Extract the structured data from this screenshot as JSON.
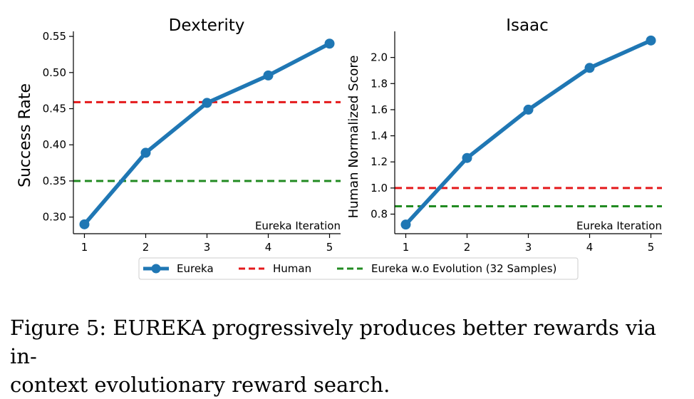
{
  "chart_data": [
    {
      "type": "line",
      "title": "Dexterity",
      "xlabel": "Eureka Iteration",
      "ylabel": "Success Rate",
      "x": [
        1,
        2,
        3,
        4,
        5
      ],
      "xticks": [
        "1",
        "2",
        "3",
        "4",
        "5"
      ],
      "xlim": [
        0.82,
        5.18
      ],
      "ylim": [
        0.277,
        0.557
      ],
      "yticks": [
        "0.30",
        "0.35",
        "0.40",
        "0.45",
        "0.50",
        "0.55"
      ],
      "series": [
        {
          "name": "Eureka",
          "values": [
            0.29,
            0.389,
            0.458,
            0.496,
            0.54
          ],
          "color": "#1f77b4"
        }
      ],
      "hlines": [
        {
          "name": "Human",
          "value": 0.459,
          "color": "#e41a1c"
        },
        {
          "name": "Eureka w.o Evolution (32 Samples)",
          "value": 0.35,
          "color": "#228b22"
        }
      ]
    },
    {
      "type": "line",
      "title": "Isaac",
      "xlabel": "Eureka Iteration",
      "ylabel": "Human Normalized Score",
      "x": [
        1,
        2,
        3,
        4,
        5
      ],
      "xticks": [
        "1",
        "2",
        "3",
        "4",
        "5"
      ],
      "xlim": [
        0.82,
        5.18
      ],
      "ylim": [
        0.65,
        2.2
      ],
      "yticks": [
        "0.8",
        "1.0",
        "1.2",
        "1.4",
        "1.6",
        "1.8",
        "2.0"
      ],
      "series": [
        {
          "name": "Eureka",
          "values": [
            0.72,
            1.23,
            1.6,
            1.92,
            2.13
          ],
          "color": "#1f77b4"
        }
      ],
      "hlines": [
        {
          "name": "Human",
          "value": 1.0,
          "color": "#e41a1c"
        },
        {
          "name": "Eureka w.o Evolution (32 Samples)",
          "value": 0.86,
          "color": "#228b22"
        }
      ]
    }
  ],
  "legend": {
    "position": "bottom-center",
    "items": [
      {
        "label": "Eureka",
        "style": "line-marker",
        "color": "#1f77b4"
      },
      {
        "label": "Human",
        "style": "dashed",
        "color": "#e41a1c"
      },
      {
        "label": "Eureka w.o Evolution (32 Samples)",
        "style": "dashed",
        "color": "#228b22"
      }
    ]
  },
  "caption": {
    "prefix": "Figure 5: ",
    "name_first": "E",
    "name_rest": "UREKA",
    "text_line1": " progressively produces better rewards via in-",
    "text_line2": "context evolutionary reward search."
  }
}
